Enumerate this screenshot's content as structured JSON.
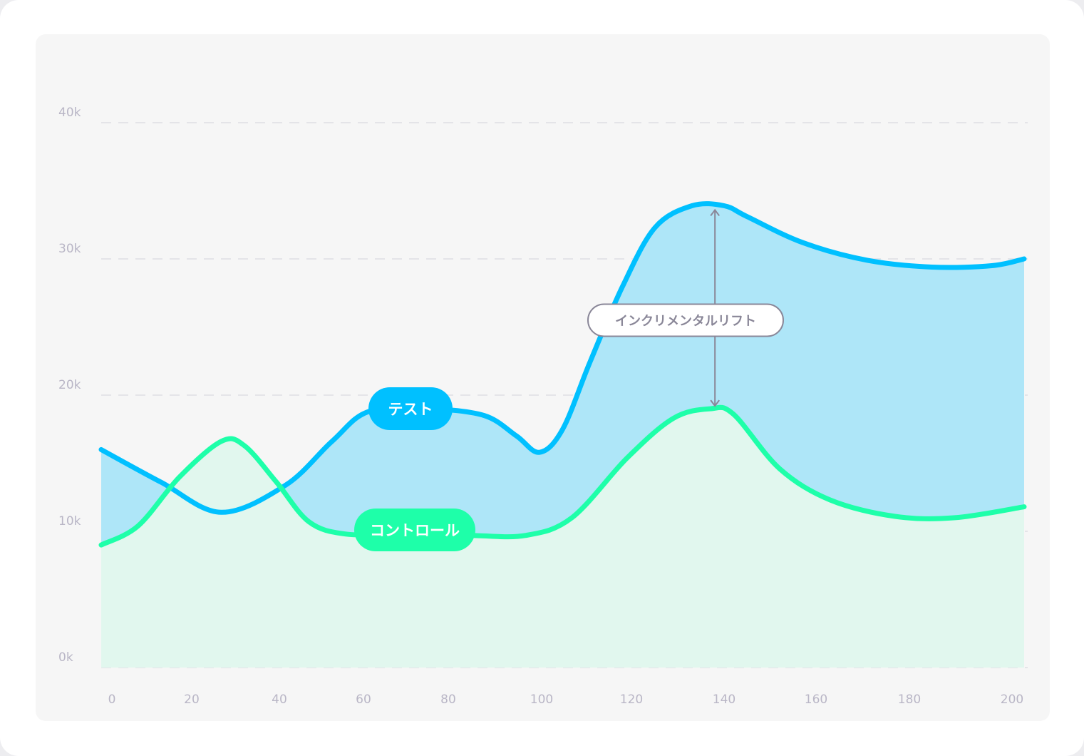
{
  "chart_data": {
    "type": "area",
    "x_ticks": [
      "0",
      "20",
      "40",
      "60",
      "80",
      "100",
      "120",
      "140",
      "160",
      "180",
      "200"
    ],
    "y_ticks": [
      "0k",
      "10k",
      "20k",
      "30k",
      "40k"
    ],
    "ylim": [
      0,
      40000
    ],
    "xlim": [
      0,
      200
    ],
    "grid": true,
    "series": [
      {
        "name": "テスト",
        "color": "#00c0ff",
        "fill": "#aee6f8",
        "points": [
          [
            0,
            16000
          ],
          [
            13,
            13600
          ],
          [
            26,
            11400
          ],
          [
            40,
            13400
          ],
          [
            50,
            16600
          ],
          [
            58,
            18800
          ],
          [
            71,
            19000
          ],
          [
            83,
            18500
          ],
          [
            90,
            17000
          ],
          [
            95,
            15800
          ],
          [
            100,
            17500
          ],
          [
            106,
            22500
          ],
          [
            113,
            28000
          ],
          [
            120,
            32300
          ],
          [
            128,
            33900
          ],
          [
            135,
            33900
          ],
          [
            140,
            33100
          ],
          [
            152,
            31200
          ],
          [
            166,
            29900
          ],
          [
            180,
            29400
          ],
          [
            193,
            29500
          ],
          [
            200,
            30000
          ]
        ]
      },
      {
        "name": "コントロール",
        "color": "#1effa9",
        "fill": "#e1f7ee",
        "points": [
          [
            0,
            9000
          ],
          [
            8,
            10400
          ],
          [
            17,
            14000
          ],
          [
            26,
            16600
          ],
          [
            31,
            16300
          ],
          [
            38,
            13600
          ],
          [
            45,
            10700
          ],
          [
            53,
            9800
          ],
          [
            65,
            9800
          ],
          [
            80,
            9700
          ],
          [
            92,
            9700
          ],
          [
            102,
            11000
          ],
          [
            114,
            15400
          ],
          [
            124,
            18300
          ],
          [
            132,
            19000
          ],
          [
            137,
            18600
          ],
          [
            147,
            14600
          ],
          [
            158,
            12300
          ],
          [
            172,
            11100
          ],
          [
            185,
            11000
          ],
          [
            200,
            11800
          ]
        ]
      }
    ],
    "annotation": {
      "label": "インクリメンタルリフト",
      "x": 133,
      "from": 19000,
      "to": 33800
    }
  }
}
